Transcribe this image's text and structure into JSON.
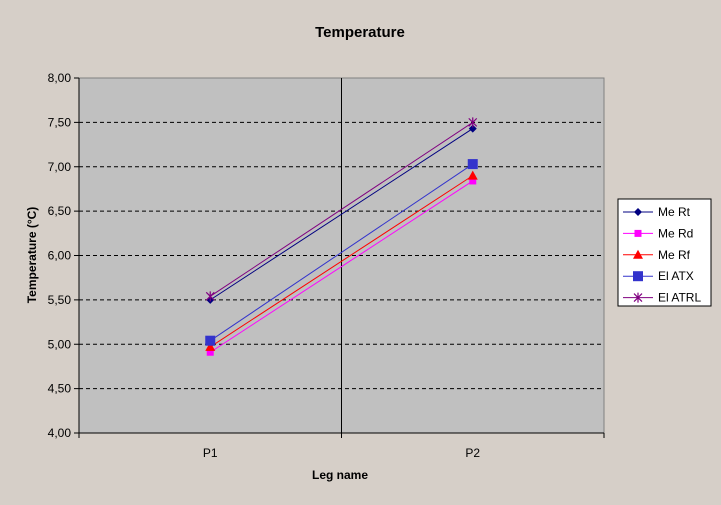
{
  "chart_data": {
    "type": "line",
    "title": "Temperature",
    "xlabel": "Leg name",
    "ylabel": "Temperature (°C)",
    "categories": [
      "P1",
      "P2"
    ],
    "ylim": [
      4.0,
      8.0
    ],
    "yticks": [
      "4,00",
      "4,50",
      "5,00",
      "5,50",
      "6,00",
      "6,50",
      "7,00",
      "7,50",
      "8,00"
    ],
    "grid": true,
    "legend_position": "right",
    "plot_background": "#c0c0c0",
    "series": [
      {
        "name": "Me Rt",
        "values": [
          5.5,
          7.43
        ],
        "color": "#000080",
        "marker": "diamond"
      },
      {
        "name": "Me Rd",
        "values": [
          4.91,
          6.84
        ],
        "color": "#ff00ff",
        "marker": "square"
      },
      {
        "name": "Me Rf",
        "values": [
          4.97,
          6.9
        ],
        "color": "#ff0000",
        "marker": "triangle"
      },
      {
        "name": "El ATX",
        "values": [
          5.04,
          7.03
        ],
        "color": "#3333cc",
        "marker": "square-large"
      },
      {
        "name": "El ATRL",
        "values": [
          5.54,
          7.5
        ],
        "color": "#800080",
        "marker": "star"
      }
    ]
  }
}
